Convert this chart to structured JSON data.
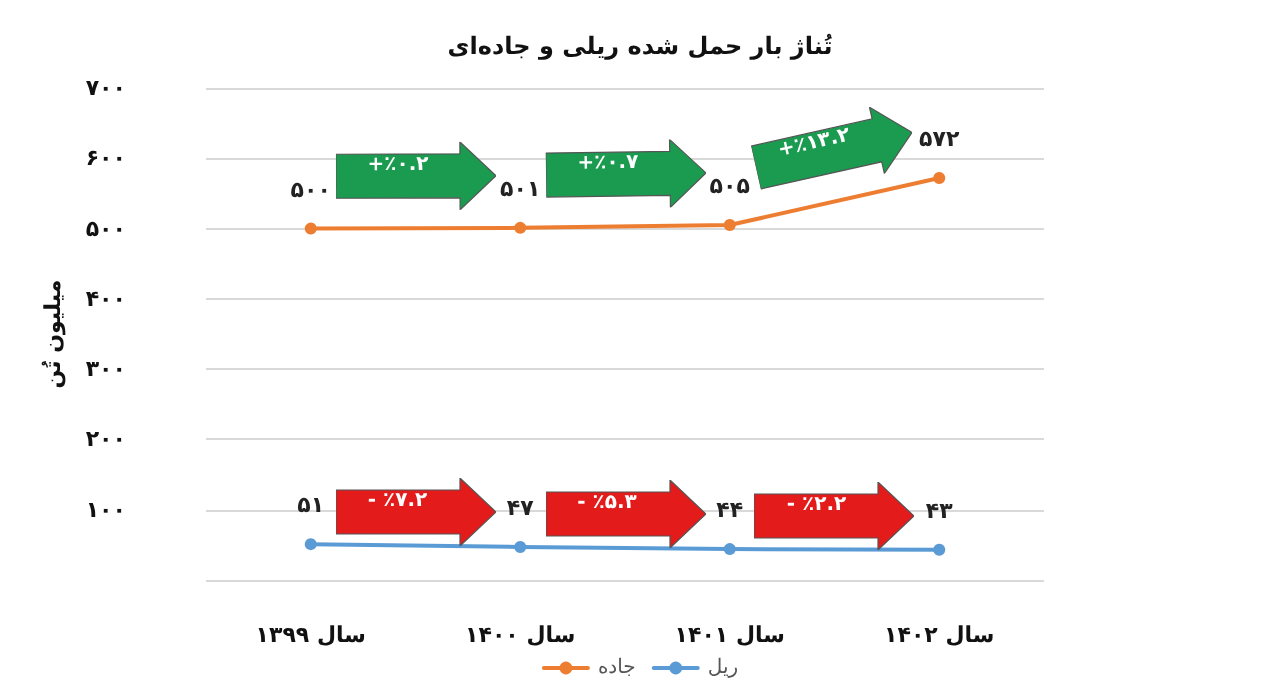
{
  "chart_data": {
    "type": "line",
    "title": "تُناژ بار حمل شده ریلی و جاده‌ای",
    "ylabel": "میلیون تُن",
    "categories": [
      "سال ۱۳۹۹",
      "سال ۱۴۰۰",
      "سال ۱۴۰۱",
      "سال ۱۴۰۲"
    ],
    "series": [
      {
        "name": "جاده",
        "color": "#ed7d31",
        "values": [
          500,
          501,
          505,
          572
        ],
        "value_labels": [
          "۵۰۰",
          "۵۰۱",
          "۵۰۵",
          "۵۷۲"
        ]
      },
      {
        "name": "ریل",
        "color": "#5b9bd5",
        "values": [
          51,
          47,
          44,
          43
        ],
        "value_labels": [
          "۵۱",
          "۴۷",
          "۴۴",
          "۴۳"
        ]
      }
    ],
    "ylim": [
      0,
      700
    ],
    "yticks": [
      {
        "value": 0,
        "label": null
      },
      {
        "value": 100,
        "label": "۱۰۰"
      },
      {
        "value": 200,
        "label": "۲۰۰"
      },
      {
        "value": 300,
        "label": "۳۰۰"
      },
      {
        "value": 400,
        "label": "۴۰۰"
      },
      {
        "value": 500,
        "label": "۵۰۰"
      },
      {
        "value": 600,
        "label": "۶۰۰"
      },
      {
        "value": 700,
        "label": "۷۰۰"
      }
    ],
    "grid": "y",
    "legend": "bottom",
    "marker": "circle",
    "line_style": "solid",
    "annotations": [
      "+٪۰.۲",
      "+٪۰.۷",
      "+٪۱۳.۲",
      "- ٪۷.۲",
      "- ٪۵.۳",
      "- ٪۲.۲"
    ]
  }
}
